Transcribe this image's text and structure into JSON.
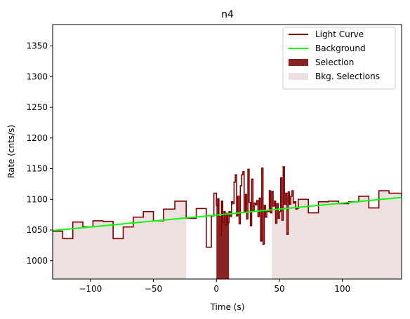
{
  "chart_data": {
    "type": "line",
    "title": "n4",
    "xlabel": "Time (s)",
    "ylabel": "Rate (cnts/s)",
    "xlim": [
      -130,
      147
    ],
    "ylim": [
      970,
      1385
    ],
    "xticks": [
      -100,
      -50,
      0,
      50,
      100
    ],
    "yticks": [
      1000,
      1050,
      1100,
      1150,
      1200,
      1250,
      1300,
      1350
    ],
    "legend": {
      "position": "top-right",
      "entries": [
        "Light Curve",
        "Background",
        "Selection",
        "Bkg. Selections"
      ]
    },
    "colors": {
      "light_curve": "#800000",
      "background": "#00ff00",
      "selection": "#8b2323",
      "bkg_selection": "#efe0e0"
    },
    "background_line": {
      "x": [
        -130,
        147
      ],
      "y": [
        1049,
        1103
      ]
    },
    "selection_range": [
      0,
      10
    ],
    "bkg_selection_ranges": [
      [
        -130,
        -24
      ],
      [
        44,
        147
      ]
    ],
    "light_curve": {
      "x": [
        -130,
        -122,
        -114,
        -106,
        -98,
        -90,
        -82,
        -74,
        -66,
        -58,
        -50,
        -42,
        -33,
        -24,
        -16,
        -8,
        -4,
        -2,
        0,
        1,
        2,
        3,
        4,
        5,
        6,
        7,
        8,
        9,
        10,
        11,
        12,
        13,
        14,
        15,
        16,
        17,
        18,
        19,
        20,
        21,
        22,
        23,
        24,
        25,
        26,
        27,
        28,
        29,
        30,
        31,
        32,
        33,
        34,
        35,
        36,
        37,
        38,
        39,
        40,
        41,
        42,
        43,
        44,
        45,
        46,
        47,
        48,
        49,
        50,
        51,
        52,
        53,
        54,
        55,
        56,
        57,
        58,
        59,
        60,
        61,
        62,
        63,
        64,
        65,
        73,
        81,
        89,
        97,
        105,
        113,
        121,
        129,
        137,
        147
      ],
      "y": [
        1048,
        1036,
        1063,
        1055,
        1065,
        1064,
        1036,
        1055,
        1071,
        1080,
        1065,
        1084,
        1097,
        1069,
        1085,
        1022,
        1073,
        1110,
        1090,
        1101,
        1072,
        1042,
        1097,
        1062,
        1080,
        1058,
        1077,
        1062,
        1080,
        1072,
        1096,
        1093,
        1128,
        1140,
        1073,
        1105,
        1060,
        1122,
        1140,
        1145,
        1080,
        1108,
        1068,
        1149,
        1095,
        1057,
        1133,
        1080,
        1094,
        1091,
        1098,
        1072,
        1102,
        1032,
        1151,
        1027,
        1090,
        1071,
        1082,
        1080,
        1114,
        1078,
        1113,
        1089,
        1097,
        1061,
        1093,
        1069,
        1080,
        1135,
        1066,
        1153,
        1092,
        1110,
        1043,
        1112,
        1092,
        1105,
        1114,
        1094,
        1096,
        1084,
        1085,
        1100,
        1078,
        1096,
        1097,
        1093,
        1096,
        1105,
        1086,
        1114,
        1110,
        1105
      ]
    },
    "grid": false
  }
}
